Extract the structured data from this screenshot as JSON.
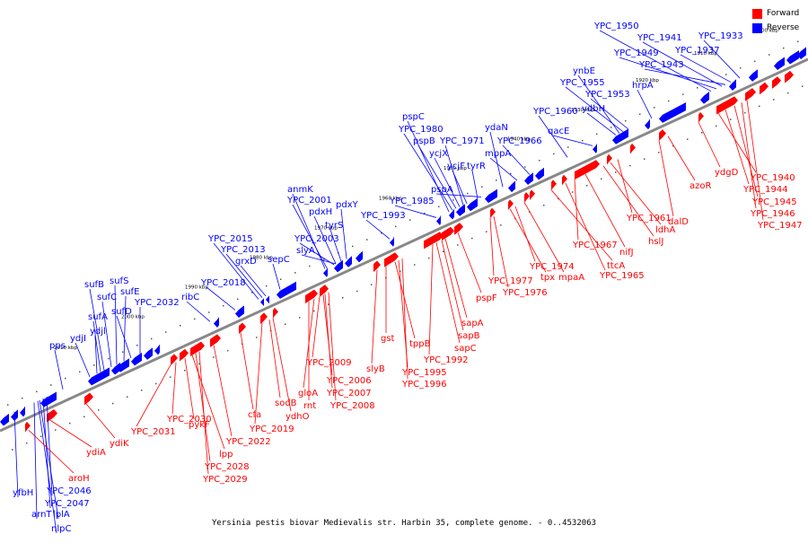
{
  "caption": "Yersinia pestis biovar Medievalis str. Harbin 35, complete genome. - 0..4532063",
  "legend": [
    {
      "label": "Forward",
      "color": "#ff0000"
    },
    {
      "label": "Reverse",
      "color": "#0000ff"
    }
  ],
  "colors": {
    "forward": "#ff0000",
    "reverse": "#0000ff",
    "backbone": "#888888",
    "leader_forward": "#ff0000",
    "leader_reverse": "#0000ff"
  },
  "ticks": [
    "2010 kbp",
    "2000 kbp",
    "1990 kbp",
    "1980 kbp",
    "1970 kbp",
    "1960 kbp",
    "1950 kbp",
    "1940 kbp",
    "1930 kbp",
    "1920 kbp",
    "1910 kbp",
    "1900 kbp"
  ],
  "reverse_labels": [
    "yfbH",
    "arnT",
    "nlpC",
    "lplA",
    "YPC_2047",
    "YPC_2046",
    "pps",
    "ydjI",
    "ydjl",
    "sufA",
    "sufB",
    "sufC",
    "sufS",
    "sufE",
    "sufD",
    "YPC_2032",
    "ribC",
    "YPC_2018",
    "YPC_2015",
    "YPC_2013",
    "grxD",
    "sepC",
    "anmK",
    "YPC_2001",
    "pdxH",
    "pdxY",
    "tyrS",
    "YPC_2003",
    "slyA",
    "YPC_1993",
    "YPC_1985",
    "pspC",
    "YPC_1980",
    "pspB",
    "ycjX",
    "YPC_1971",
    "ycjF",
    "tyrR",
    "pspA",
    "ydaN",
    "mppA",
    "YPC_1966",
    "YPC_1960",
    "qacE",
    "ydbH",
    "ynbE",
    "YPC_1955",
    "YPC_1953",
    "hrpA",
    "YPC_1950",
    "YPC_1949",
    "YPC_1941",
    "YPC_1943",
    "YPC_1937",
    "YPC_1933"
  ],
  "forward_labels": [
    "aroH",
    "ydiA",
    "ydiK",
    "YPC_2031",
    "YPC_2030",
    "pykF",
    "lpp",
    "YPC_2028",
    "YPC_2029",
    "YPC_2022",
    "cfa",
    "YPC_2019",
    "sodB",
    "ydhO",
    "rnt",
    "gloA",
    "YPC_2009",
    "YPC_2006",
    "YPC_2007",
    "YPC_2008",
    "slyB",
    "gst",
    "tppB",
    "YPC_1995",
    "YPC_1996",
    "YPC_1992",
    "sapC",
    "sapB",
    "sapA",
    "pspF",
    "YPC_1977",
    "YPC_1976",
    "tpx",
    "YPC_1974",
    "mpaA",
    "ttcA",
    "YPC_1965",
    "YPC_1967",
    "nifJ",
    "hslJ",
    "ldhA",
    "YPC_1961",
    "dalD",
    "azoR",
    "ydgD",
    "YPC_1940",
    "YPC_1944",
    "YPC_1945",
    "YPC_1946",
    "YPC_1947"
  ]
}
